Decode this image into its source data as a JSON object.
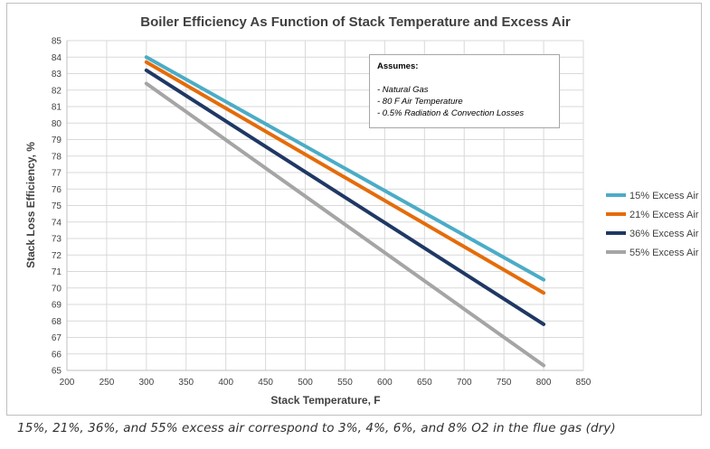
{
  "chart_data": {
    "type": "line",
    "title": "Boiler Efficiency As Function of Stack Temperature and Excess Air",
    "xlabel": "Stack Temperature, F",
    "ylabel": "Stack Loss Efficiency, %",
    "xlim": [
      200,
      850
    ],
    "ylim": [
      65,
      85
    ],
    "xticks": [
      200,
      250,
      300,
      350,
      400,
      450,
      500,
      550,
      600,
      650,
      700,
      750,
      800,
      850
    ],
    "yticks": [
      65,
      66,
      67,
      68,
      69,
      70,
      71,
      72,
      73,
      74,
      75,
      76,
      77,
      78,
      79,
      80,
      81,
      82,
      83,
      84,
      85
    ],
    "grid": true,
    "legend_position": "right",
    "series": [
      {
        "name": "15% Excess Air",
        "color": "#4bacc6",
        "x": [
          300,
          800
        ],
        "y": [
          84.0,
          70.5
        ]
      },
      {
        "name": "21% Excess Air",
        "color": "#e46c0a",
        "x": [
          300,
          800
        ],
        "y": [
          83.7,
          69.7
        ]
      },
      {
        "name": "36% Excess Air",
        "color": "#1f3864",
        "x": [
          300,
          800
        ],
        "y": [
          83.2,
          67.8
        ]
      },
      {
        "name": "55% Excess Air",
        "color": "#a5a5a5",
        "x": [
          300,
          800
        ],
        "y": [
          82.4,
          65.3
        ]
      }
    ],
    "annotation": {
      "title": "Assumes:",
      "items": [
        "- Natural Gas",
        "- 80 F Air Temperature",
        "- 0.5% Radiation & Convection Losses"
      ]
    }
  },
  "caption": "15%, 21%, 36%, and 55% excess air correspond to 3%, 4%, 6%, and 8% O2 in the flue gas (dry)"
}
